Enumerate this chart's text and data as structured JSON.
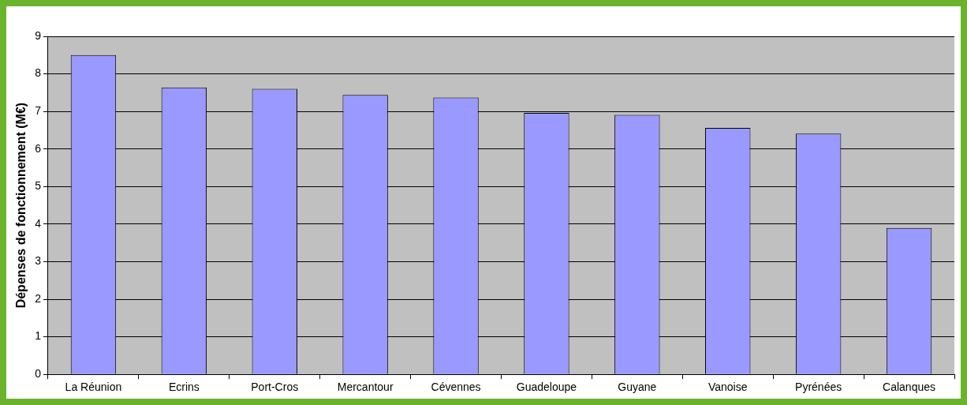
{
  "chart_data": {
    "type": "bar",
    "ylabel": "Dépenses de fonctionnement (M€)",
    "categories": [
      "La Réunion",
      "Ecrins",
      "Port-Cros",
      "Mercantour",
      "Cévennes",
      "Guadeloupe",
      "Guyane",
      "Vanoise",
      "Pyrénées",
      "Calanques"
    ],
    "values": [
      8.5,
      7.64,
      7.6,
      7.44,
      7.37,
      6.96,
      6.91,
      6.56,
      6.41,
      3.9
    ],
    "color": "#9999ff",
    "ylim": [
      0,
      9
    ],
    "yticks": [
      0,
      1,
      2,
      3,
      4,
      5,
      6,
      7,
      8,
      9
    ],
    "grid": "y",
    "legend": false
  }
}
